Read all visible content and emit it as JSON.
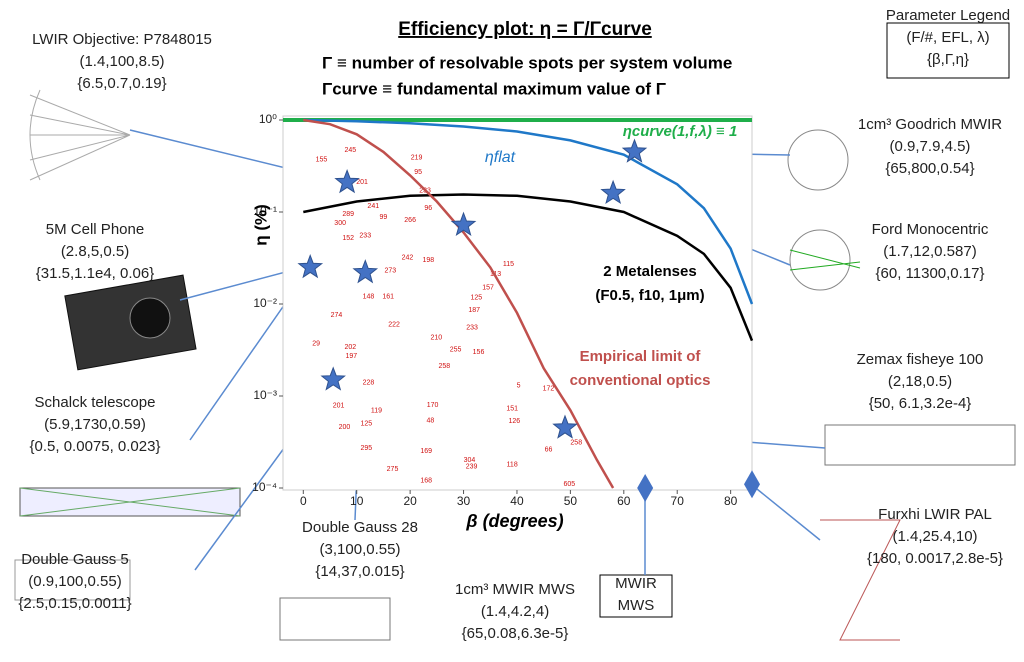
{
  "chart_data": {
    "type": "scatter",
    "title": "Efficiency plot: η = Γ/Γcurve",
    "subtitle": [
      "Γ ≡ number of resolvable spots per system volume",
      "Γcurve ≡ fundamental maximum value of Γ"
    ],
    "x_label": "β (degrees)",
    "y_label": "η (%)",
    "xlim": [
      -3.8,
      84
    ],
    "ylim": [
      0.0001,
      1
    ],
    "log_y": true,
    "xticks": [
      0,
      10,
      20,
      30,
      40,
      50,
      60,
      70,
      80
    ],
    "yticks": [
      {
        "value": 0.0001,
        "label": "10⁻⁴"
      },
      {
        "value": 0.001,
        "label": "10⁻³"
      },
      {
        "value": 0.01,
        "label": "10⁻²"
      },
      {
        "value": 0.1,
        "label": "10⁻¹"
      },
      {
        "value": 1,
        "label": "10⁰"
      }
    ],
    "series": [
      {
        "label": [
          "ηcurve(1,f,λ) ≡ 1"
        ],
        "color": "#1fae4a",
        "x": [
          -3.8,
          84
        ],
        "values": [
          1,
          1
        ]
      },
      {
        "label": [
          "ηflat"
        ],
        "color": "#1f78c8",
        "x": [
          0,
          10,
          20,
          30,
          40,
          50,
          60,
          70,
          75,
          80,
          84
        ],
        "values": [
          1,
          0.97,
          0.92,
          0.85,
          0.75,
          0.6,
          0.42,
          0.2,
          0.11,
          0.04,
          0.01
        ]
      },
      {
        "label": [
          "2 Metalenses",
          "(F0.5, f10, 1μm)"
        ],
        "color": "#000000",
        "x": [
          0,
          10,
          20,
          30,
          40,
          50,
          60,
          70,
          75,
          80,
          84
        ],
        "values": [
          0.1,
          0.13,
          0.15,
          0.155,
          0.15,
          0.13,
          0.1,
          0.055,
          0.035,
          0.015,
          0.004
        ]
      },
      {
        "label": [
          "Empirical limit of",
          "conventional optics"
        ],
        "color": "#c0504d",
        "x": [
          0,
          5,
          10,
          15,
          20,
          25,
          30,
          35,
          40,
          45,
          50,
          55,
          58
        ],
        "values": [
          1,
          0.9,
          0.7,
          0.45,
          0.25,
          0.13,
          0.06,
          0.025,
          0.008,
          0.002,
          0.0007,
          0.0002,
          0.0001
        ]
      }
    ],
    "designs": {
      "color": "#d01010",
      "labels": [
        "219",
        "95",
        "245",
        "155",
        "201",
        "233",
        "96",
        "241",
        "289",
        "99",
        "266",
        "300",
        "152",
        "233",
        "198",
        "242",
        "115",
        "113",
        "273",
        "157",
        "125",
        "148",
        "161",
        "274",
        "222",
        "187",
        "233",
        "29",
        "202",
        "197",
        "210",
        "255",
        "156",
        "258",
        "5",
        "172",
        "228",
        "201",
        "119",
        "170",
        "151",
        "126",
        "125",
        "48",
        "200",
        "295",
        "169",
        "66",
        "258",
        "304",
        "118",
        "275",
        "239",
        "168",
        "605"
      ],
      "x": [
        21.2,
        21.5,
        8.8,
        3.4,
        11,
        22.8,
        23.4,
        13.1,
        8.4,
        15,
        20,
        6.9,
        8.4,
        11.6,
        23.4,
        19.5,
        38.4,
        36,
        16.3,
        34.6,
        32.4,
        12.2,
        15.9,
        6.2,
        17,
        32,
        31.6,
        2.4,
        8.8,
        9,
        24.9,
        28.5,
        32.8,
        26.4,
        40.3,
        45.9,
        12.2,
        6.6,
        13.7,
        24.2,
        39.1,
        39.5,
        11.8,
        23.8,
        7.7,
        11.8,
        23,
        45.9,
        51.1,
        31.1,
        39.1,
        16.7,
        31.5,
        23,
        49.8
      ],
      "values": [
        0.39,
        0.27,
        0.47,
        0.37,
        0.21,
        0.17,
        0.11,
        0.116,
        0.095,
        0.088,
        0.082,
        0.076,
        0.052,
        0.055,
        0.03,
        0.032,
        0.027,
        0.021,
        0.023,
        0.015,
        0.0117,
        0.012,
        0.012,
        0.0076,
        0.006,
        0.0086,
        0.0055,
        0.0037,
        0.0034,
        0.0027,
        0.0043,
        0.0032,
        0.003,
        0.0021,
        0.0013,
        0.0012,
        0.0014,
        0.00079,
        0.00069,
        0.0008,
        0.00073,
        0.00053,
        0.0005,
        0.00054,
        0.00046,
        0.00027,
        0.00025,
        0.00026,
        0.00031,
        0.0002,
        0.00018,
        0.00016,
        0.00017,
        0.00012,
        0.00011
      ]
    },
    "stars": {
      "color": "#4472c4",
      "x": [
        8.2,
        30,
        1.3,
        11.6,
        5.6,
        49,
        62,
        58
      ],
      "values": [
        0.21,
        0.072,
        0.025,
        0.022,
        0.0015,
        0.00045,
        0.45,
        0.16
      ]
    },
    "diamonds": {
      "color": "#4472c4",
      "x": [
        64,
        84
      ],
      "values": [
        0.0001,
        0.00011
      ]
    },
    "annotations": [
      {
        "lines": [
          "LWIR Objective: P7848015",
          "(1.4,100,8.5)",
          "{6.5,0.7,0.19}"
        ]
      },
      {
        "lines": [
          "5M Cell Phone",
          "(2.8,5,0.5)",
          "{31.5,1.1e4, 0.06}"
        ]
      },
      {
        "lines": [
          "Schalck telescope",
          "(5.9,1730,0.59)",
          "{0.5, 0.0075, 0.023}"
        ]
      },
      {
        "lines": [
          "Double Gauss 5",
          "(0.9,100,0.55)",
          "{2.5,0.15,0.0011}"
        ]
      },
      {
        "lines": [
          "Double Gauss 28",
          "(3,100,0.55)",
          "{14,37,0.015}"
        ]
      },
      {
        "lines": [
          "1cm³ MWIR MWS",
          "(1.4,4.2,4)",
          "{65,0.08,6.3e-5}"
        ]
      },
      {
        "lines": [
          "MWIR",
          "MWS"
        ]
      },
      {
        "lines": [
          "1cm³ Goodrich MWIR",
          "(0.9,7.9,4.5)",
          "{65,800,0.54}"
        ]
      },
      {
        "lines": [
          "Ford Monocentric",
          "(1.7,12,0.587)",
          "{60, 11300,0.17}"
        ]
      },
      {
        "lines": [
          "Zemax fisheye 100",
          "(2,18,0.5)",
          "{50, 6.1,3.2e-4}"
        ]
      },
      {
        "lines": [
          "Furxhi LWIR PAL",
          "(1.4,25.4,10)",
          "{180, 0.0017,2.8e-5}"
        ]
      },
      {
        "lines": [
          "Parameter Legend",
          "(F/#, EFL, λ)",
          "{β,Γ,η}"
        ]
      }
    ]
  }
}
